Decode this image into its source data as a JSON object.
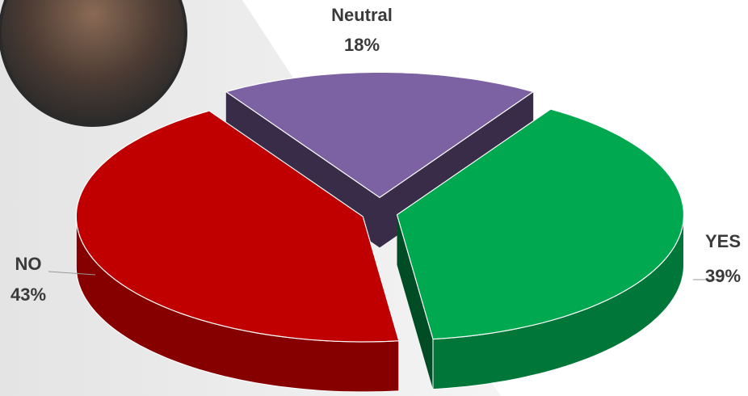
{
  "chart_data": {
    "type": "pie3d",
    "categories": [
      "Neutral",
      "YES",
      "NO"
    ],
    "values": [
      18,
      39,
      43
    ],
    "value_labels": [
      "18%",
      "39%",
      "43%"
    ],
    "colors": [
      "#7d62a3",
      "#00a850",
      "#c00000"
    ]
  }
}
